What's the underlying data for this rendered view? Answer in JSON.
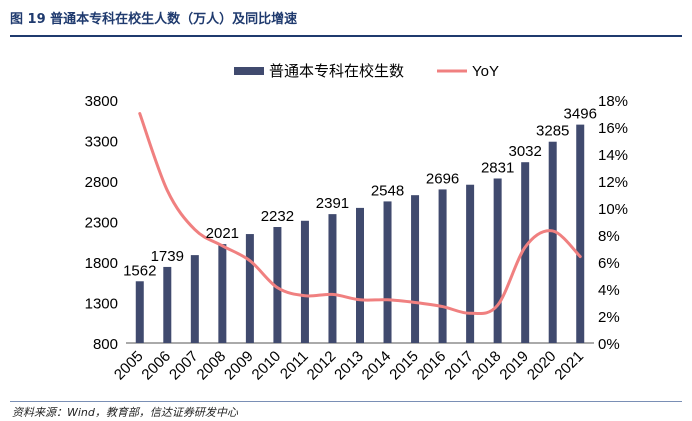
{
  "header": {
    "title": "图 19 普通本专科在校生人数（万人）及同比增速"
  },
  "source": {
    "text": "资料来源：Wind，教育部，信达证券研发中心"
  },
  "colors": {
    "bar": "#404a6e",
    "line": "#f08080",
    "title": "#1f3a6e"
  },
  "chart_data": {
    "type": "bar+line",
    "title": "",
    "legend": {
      "bar_label": "普通本专科在校生数",
      "line_label": "YoY",
      "placement": "top-center"
    },
    "categories": [
      "2005",
      "2006",
      "2007",
      "2008",
      "2009",
      "2010",
      "2011",
      "2012",
      "2013",
      "2014",
      "2015",
      "2016",
      "2017",
      "2018",
      "2019",
      "2020",
      "2021"
    ],
    "series": [
      {
        "name": "普通本专科在校生数",
        "type": "bar",
        "axis": "left",
        "values": [
          1562,
          1739,
          1885,
          2021,
          2145,
          2232,
          2309,
          2391,
          2468,
          2548,
          2625,
          2696,
          2754,
          2831,
          3032,
          3285,
          3496
        ]
      },
      {
        "name": "YoY",
        "type": "line",
        "axis": "right",
        "values": [
          17.0,
          11.3,
          8.4,
          7.2,
          6.1,
          4.1,
          3.5,
          3.6,
          3.2,
          3.2,
          3.0,
          2.7,
          2.2,
          2.8,
          7.1,
          8.3,
          6.4
        ]
      }
    ],
    "data_labels": {
      "indices": [
        0,
        1,
        3,
        5,
        7,
        9,
        11,
        13,
        14,
        15,
        16
      ],
      "values": [
        "1562",
        "1739",
        "2021",
        "2232",
        "2391",
        "2548",
        "2696",
        "2831",
        "3032",
        "3285",
        "3496"
      ]
    },
    "left_axis": {
      "min": 800,
      "max": 3800,
      "ticks": [
        "800",
        "1300",
        "1800",
        "2300",
        "2800",
        "3300",
        "3800"
      ]
    },
    "right_axis": {
      "min": 0,
      "max": 18,
      "ticks": [
        "0%",
        "2%",
        "4%",
        "6%",
        "8%",
        "10%",
        "12%",
        "14%",
        "16%",
        "18%"
      ]
    },
    "grid": false
  }
}
